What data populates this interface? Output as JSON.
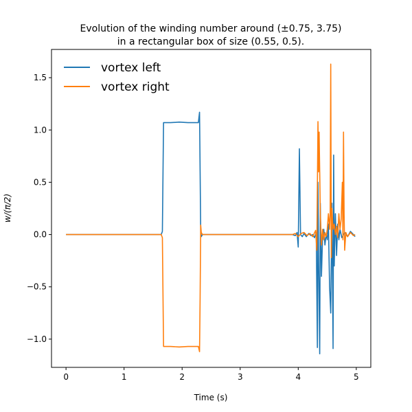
{
  "chart_data": {
    "type": "line",
    "title_line1": "Evolution of the winding number around (±0.75, 3.75)",
    "title_line2": "in a rectangular box of size (0.55, 0.5).",
    "xlabel": "Time (s)",
    "ylabel": "w/(π/2)",
    "xlim": [
      -0.25,
      5.25
    ],
    "ylim": [
      -1.27,
      1.77
    ],
    "x_ticks": [
      0,
      1,
      2,
      3,
      4,
      5
    ],
    "y_ticks": [
      -1.0,
      -0.5,
      0.0,
      0.5,
      1.0,
      1.5
    ],
    "x_tick_labels": [
      "0",
      "1",
      "2",
      "3",
      "4",
      "5"
    ],
    "y_tick_labels": [
      "−1.0",
      "−0.5",
      "0.0",
      "0.5",
      "1.0",
      "1.5"
    ],
    "grid": false,
    "legend_position": "top-left",
    "series": [
      {
        "name": "vortex left",
        "color": "#1f77b4",
        "points": [
          [
            0,
            0
          ],
          [
            1.64,
            0
          ],
          [
            1.66,
            0.03
          ],
          [
            1.68,
            1.07
          ],
          [
            1.8,
            1.07
          ],
          [
            1.95,
            1.075
          ],
          [
            2.1,
            1.07
          ],
          [
            2.28,
            1.07
          ],
          [
            2.3,
            1.17
          ],
          [
            2.31,
            0.6
          ],
          [
            2.32,
            0.02
          ],
          [
            2.33,
            -0.02
          ],
          [
            2.35,
            0
          ],
          [
            2.8,
            0
          ],
          [
            3.5,
            0
          ],
          [
            3.9,
            0
          ],
          [
            3.95,
            -0.01
          ],
          [
            3.98,
            0.02
          ],
          [
            4.0,
            -0.12
          ],
          [
            4.02,
            0.82
          ],
          [
            4.04,
            0.0
          ],
          [
            4.07,
            -0.02
          ],
          [
            4.1,
            0.01
          ],
          [
            4.14,
            -0.02
          ],
          [
            4.18,
            0.01
          ],
          [
            4.22,
            -0.01
          ],
          [
            4.25,
            0.0
          ],
          [
            4.28,
            -0.03
          ],
          [
            4.31,
            0.02
          ],
          [
            4.33,
            -1.08
          ],
          [
            4.34,
            0.5
          ],
          [
            4.35,
            -0.2
          ],
          [
            4.37,
            -1.14
          ],
          [
            4.38,
            0.3
          ],
          [
            4.4,
            -0.4
          ],
          [
            4.42,
            0.0
          ],
          [
            4.44,
            0.05
          ],
          [
            4.46,
            -0.1
          ],
          [
            4.48,
            0.0
          ],
          [
            4.5,
            -0.05
          ],
          [
            4.52,
            0.1
          ],
          [
            4.54,
            -0.5
          ],
          [
            4.56,
            -0.75
          ],
          [
            4.58,
            0.3
          ],
          [
            4.6,
            -1.09
          ],
          [
            4.61,
            0.76
          ],
          [
            4.62,
            -0.3
          ],
          [
            4.64,
            0.2
          ],
          [
            4.66,
            -0.2
          ],
          [
            4.68,
            0.1
          ],
          [
            4.7,
            -0.05
          ],
          [
            4.72,
            0.05
          ],
          [
            4.75,
            -0.03
          ],
          [
            4.8,
            0.02
          ],
          [
            4.85,
            -0.02
          ],
          [
            4.9,
            0.03
          ],
          [
            4.95,
            0.0
          ],
          [
            4.98,
            -0.02
          ]
        ]
      },
      {
        "name": "vortex right",
        "color": "#ff7f0e",
        "points": [
          [
            0,
            0
          ],
          [
            1.64,
            0
          ],
          [
            1.66,
            -0.03
          ],
          [
            1.68,
            -1.07
          ],
          [
            1.8,
            -1.07
          ],
          [
            1.95,
            -1.075
          ],
          [
            2.1,
            -1.07
          ],
          [
            2.28,
            -1.07
          ],
          [
            2.3,
            -1.12
          ],
          [
            2.31,
            -0.6
          ],
          [
            2.32,
            0.09
          ],
          [
            2.33,
            0.02
          ],
          [
            2.35,
            0
          ],
          [
            2.8,
            0
          ],
          [
            3.5,
            0
          ],
          [
            3.9,
            0
          ],
          [
            3.95,
            0.01
          ],
          [
            4.0,
            -0.02
          ],
          [
            4.05,
            0.01
          ],
          [
            4.1,
            0.02
          ],
          [
            4.15,
            -0.01
          ],
          [
            4.2,
            0.01
          ],
          [
            4.25,
            -0.02
          ],
          [
            4.3,
            0.04
          ],
          [
            4.32,
            -0.15
          ],
          [
            4.34,
            1.08
          ],
          [
            4.35,
            0.6
          ],
          [
            4.36,
            0.98
          ],
          [
            4.37,
            0.6
          ],
          [
            4.38,
            0.2
          ],
          [
            4.4,
            -0.1
          ],
          [
            4.42,
            0.05
          ],
          [
            4.44,
            -0.05
          ],
          [
            4.46,
            0.02
          ],
          [
            4.48,
            -0.02
          ],
          [
            4.5,
            0.05
          ],
          [
            4.52,
            0.2
          ],
          [
            4.54,
            0.05
          ],
          [
            4.55,
            0.2
          ],
          [
            4.56,
            1.63
          ],
          [
            4.57,
            -0.22
          ],
          [
            4.58,
            0.25
          ],
          [
            4.6,
            0.05
          ],
          [
            4.62,
            0.1
          ],
          [
            4.64,
            0.0
          ],
          [
            4.66,
            0.08
          ],
          [
            4.68,
            -0.03
          ],
          [
            4.7,
            0.2
          ],
          [
            4.72,
            0.05
          ],
          [
            4.74,
            0.15
          ],
          [
            4.76,
            0.5
          ],
          [
            4.77,
            -0.05
          ],
          [
            4.78,
            0.98
          ],
          [
            4.79,
            0.2
          ],
          [
            4.8,
            -0.15
          ],
          [
            4.82,
            0.02
          ],
          [
            4.85,
            -0.02
          ],
          [
            4.9,
            0.02
          ],
          [
            4.95,
            -0.01
          ],
          [
            4.98,
            0.0
          ]
        ]
      }
    ]
  }
}
